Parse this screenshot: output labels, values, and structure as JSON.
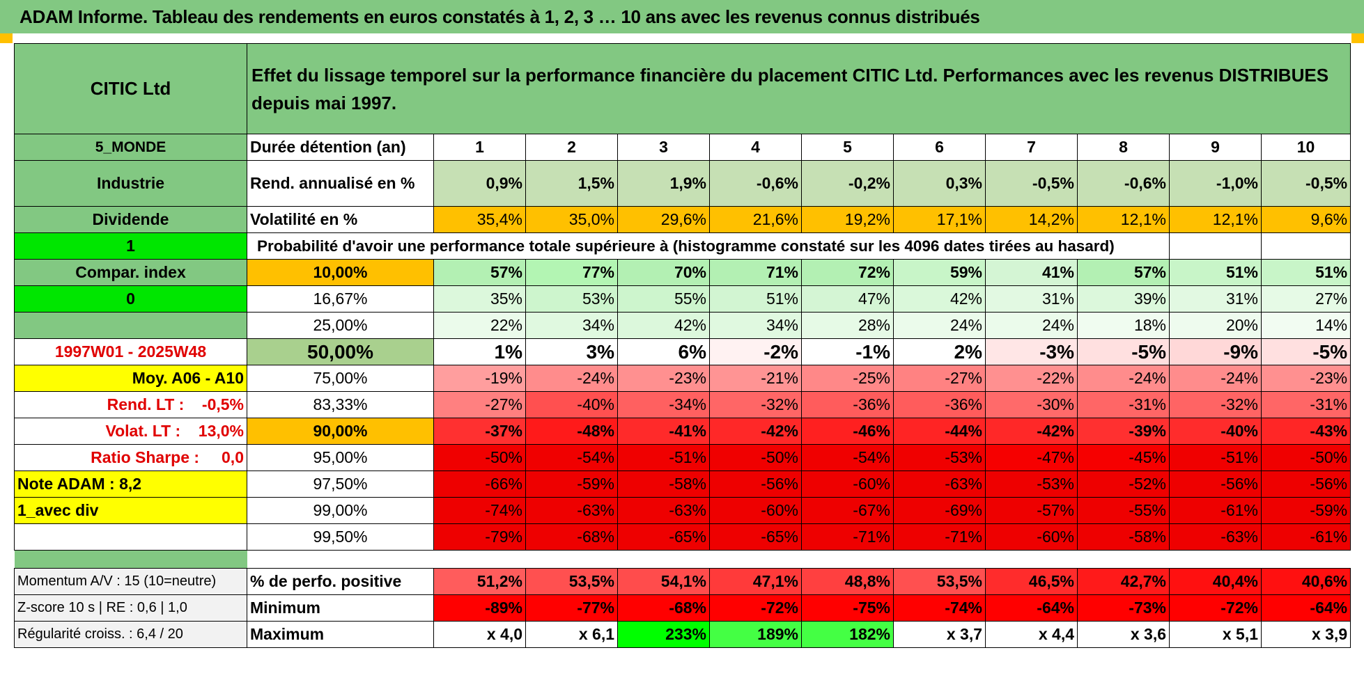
{
  "title": "ADAM Informe. Tableau des rendements en euros constatés à 1, 2, 3 … 10 ans avec les revenus connus distribués",
  "header": {
    "name": "CITIC Ltd",
    "description": "Effet du lissage temporel sur la performance financière du placement CITIC Ltd. Performances avec les revenus DISTRIBUES depuis mai 1997."
  },
  "colors": {
    "green_header": "#82c882",
    "bright_green": "#00e600",
    "yellow": "#ffff00",
    "orange": "#ffc000",
    "red_text": "#e00000"
  },
  "left_panel": {
    "region": "5_MONDE",
    "sector": "Industrie",
    "type": "Dividende",
    "input1": "1",
    "compar": "Compar. index",
    "input2": "0",
    "period": "1997W01 - 2025W48",
    "moy": "Moy. A06 - A10",
    "rend_lt": "Rend. LT :    -0,5%",
    "volat_lt": "Volat. LT :    13,0%",
    "sharpe": "Ratio Sharpe :     0,0",
    "note": "Note ADAM : 8,2",
    "mode": "1_avec div",
    "momentum": "Momentum A/V : 15 (10=neutre)",
    "zscore": "Z-score 10 s | RE : 0,6 | 1,0",
    "regularite": "Régularité croiss. : 6,4 / 20"
  },
  "rows": {
    "duree_label": "Durée détention (an)",
    "years": [
      "1",
      "2",
      "3",
      "4",
      "5",
      "6",
      "7",
      "8",
      "9",
      "10"
    ],
    "rend_label": "Rend. annualisé en %",
    "rend": [
      "0,9%",
      "1,5%",
      "1,9%",
      "-0,6%",
      "-0,2%",
      "0,3%",
      "-0,5%",
      "-0,6%",
      "-1,0%",
      "-0,5%"
    ],
    "vol_label": "Volatilité en %",
    "vol": [
      "35,4%",
      "35,0%",
      "29,6%",
      "21,6%",
      "19,2%",
      "17,1%",
      "14,2%",
      "12,1%",
      "12,1%",
      "9,6%"
    ],
    "prob_label": "Probabilité d'avoir une performance totale supérieure à (histogramme constaté sur les 4096 dates tirées au hasard)"
  },
  "quantiles": [
    {
      "label": "10,00%",
      "values": [
        "57%",
        "77%",
        "70%",
        "71%",
        "72%",
        "59%",
        "41%",
        "57%",
        "51%",
        "51%"
      ]
    },
    {
      "label": "16,67%",
      "values": [
        "35%",
        "53%",
        "55%",
        "51%",
        "47%",
        "42%",
        "31%",
        "39%",
        "31%",
        "27%"
      ]
    },
    {
      "label": "25,00%",
      "values": [
        "22%",
        "34%",
        "42%",
        "34%",
        "28%",
        "24%",
        "24%",
        "18%",
        "20%",
        "14%"
      ]
    },
    {
      "label": "50,00%",
      "values": [
        "1%",
        "3%",
        "6%",
        "-2%",
        "-1%",
        "2%",
        "-3%",
        "-5%",
        "-9%",
        "-5%"
      ]
    },
    {
      "label": "75,00%",
      "values": [
        "-19%",
        "-24%",
        "-23%",
        "-21%",
        "-25%",
        "-27%",
        "-22%",
        "-24%",
        "-24%",
        "-23%"
      ]
    },
    {
      "label": "83,33%",
      "values": [
        "-27%",
        "-40%",
        "-34%",
        "-32%",
        "-36%",
        "-36%",
        "-30%",
        "-31%",
        "-32%",
        "-31%"
      ]
    },
    {
      "label": "90,00%",
      "values": [
        "-37%",
        "-48%",
        "-41%",
        "-42%",
        "-46%",
        "-44%",
        "-42%",
        "-39%",
        "-40%",
        "-43%"
      ]
    },
    {
      "label": "95,00%",
      "values": [
        "-50%",
        "-54%",
        "-51%",
        "-50%",
        "-54%",
        "-53%",
        "-47%",
        "-45%",
        "-51%",
        "-50%"
      ]
    },
    {
      "label": "97,50%",
      "values": [
        "-66%",
        "-59%",
        "-58%",
        "-56%",
        "-60%",
        "-63%",
        "-53%",
        "-52%",
        "-56%",
        "-56%"
      ]
    },
    {
      "label": "99,00%",
      "values": [
        "-74%",
        "-63%",
        "-63%",
        "-60%",
        "-67%",
        "-69%",
        "-57%",
        "-55%",
        "-61%",
        "-59%"
      ]
    },
    {
      "label": "99,50%",
      "values": [
        "-79%",
        "-68%",
        "-65%",
        "-65%",
        "-71%",
        "-71%",
        "-60%",
        "-58%",
        "-63%",
        "-61%"
      ]
    }
  ],
  "stats": {
    "pos_label": "% de perfo. positive",
    "pos": [
      "51,2%",
      "53,5%",
      "54,1%",
      "47,1%",
      "48,8%",
      "53,5%",
      "46,5%",
      "42,7%",
      "40,4%",
      "40,6%"
    ],
    "min_label": "Minimum",
    "min": [
      "-89%",
      "-77%",
      "-68%",
      "-72%",
      "-75%",
      "-74%",
      "-64%",
      "-73%",
      "-72%",
      "-64%"
    ],
    "max_label": "Maximum",
    "max": [
      "x 4,0",
      "x 6,1",
      "233%",
      "189%",
      "182%",
      "x 3,7",
      "x 4,4",
      "x 3,6",
      "x 5,1",
      "x 3,9"
    ]
  }
}
